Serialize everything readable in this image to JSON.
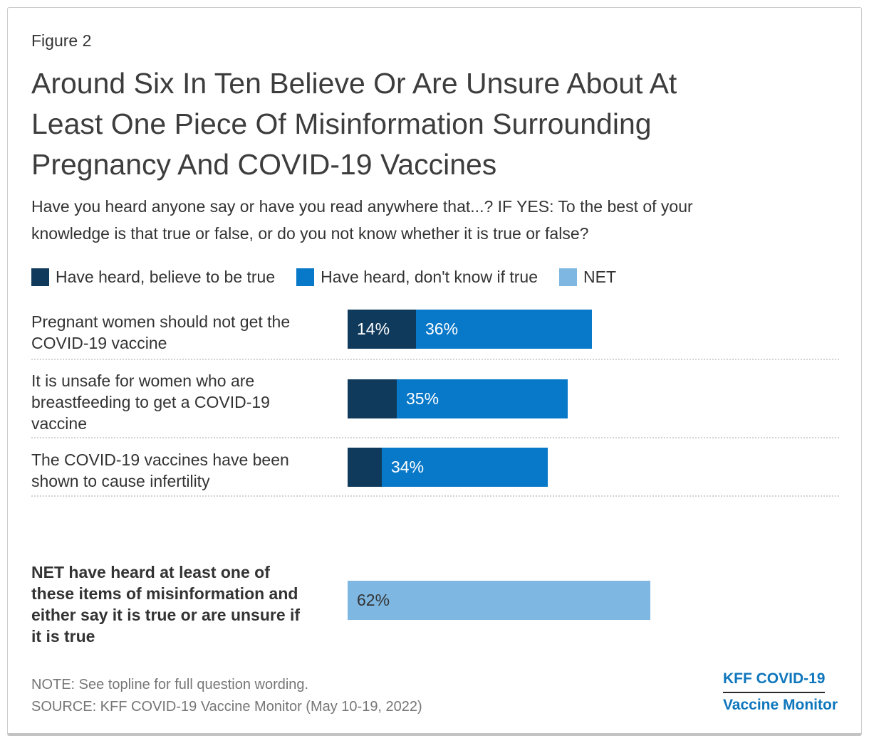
{
  "figure_label": "Figure 2",
  "title": "Around Six In Ten Believe Or Are Unsure About At\nLeast One Piece Of Misinformation Surrounding\nPregnancy And COVID-19 Vaccines",
  "subtitle": "Have you heard anyone say or have you read anywhere that...? IF YES: To the best of your\nknowledge is that true or false, or do you not know whether it is true or false?",
  "colors": {
    "believe_true": "#103A5C",
    "dont_know": "#0878C8",
    "net": "#7EB8E2",
    "logo_blue": "#0E76BC"
  },
  "chart_data": {
    "type": "bar",
    "orientation": "horizontal",
    "stacked": true,
    "unit": "percent",
    "x_range": [
      0,
      100
    ],
    "grid": false,
    "legend_position": "top",
    "legend": [
      {
        "label": "Have heard, believe to be true",
        "color": "#103A5C"
      },
      {
        "label": "Have heard, don't know if true",
        "color": "#0878C8"
      },
      {
        "label": "NET",
        "color": "#7EB8E2"
      }
    ],
    "series_names": [
      "Have heard, believe to be true",
      "Have heard, don't know if true"
    ],
    "rows": [
      {
        "category": "Pregnant women should not get the COVID-19 vaccine",
        "display": "Pregnant women should not get the\nCOVID-19 vaccine",
        "values": [
          14,
          36
        ],
        "value_labels": [
          "14%",
          "36%"
        ]
      },
      {
        "category": "It is unsafe for women who are breastfeeding to get a COVID-19 vaccine",
        "display": "It is unsafe for women who are\nbreastfeeding to get a COVID-19\nvaccine",
        "values": [
          10,
          35
        ],
        "value_labels": [
          "",
          "35%"
        ]
      },
      {
        "category": "The COVID-19 vaccines have been shown to cause infertility",
        "display": "The COVID-19 vaccines have been\nshown to cause infertility",
        "values": [
          7,
          34
        ],
        "value_labels": [
          "",
          "34%"
        ]
      }
    ],
    "net": {
      "category": "NET have heard at least one of these items of misinformation and either say it is true or are unsure if it is true",
      "display": "NET have heard at least one of\nthese items of misinformation and\neither say it is true or are unsure if\nit is true",
      "value": 62,
      "value_label": "62%"
    }
  },
  "footer": {
    "note": "NOTE: See topline for full question wording.",
    "source": "SOURCE: KFF COVID-19 Vaccine Monitor (May 10-19, 2022)",
    "logo_line1": "KFF COVID-19",
    "logo_line2": "Vaccine Monitor"
  }
}
